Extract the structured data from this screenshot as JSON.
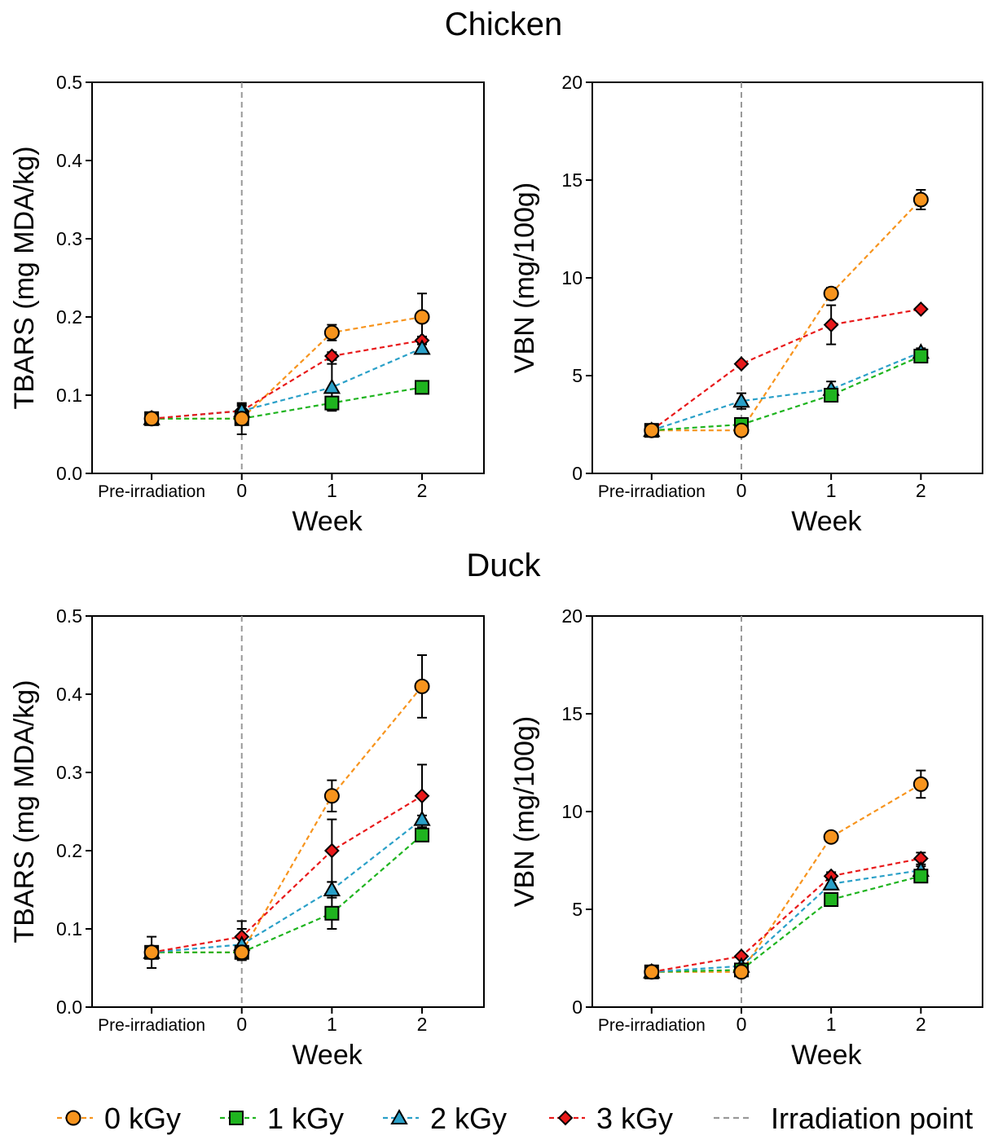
{
  "sections": {
    "top_title": "Chicken",
    "bottom_title": "Duck"
  },
  "legend": {
    "items": [
      {
        "label": "0 kGy",
        "marker": "circle",
        "color": "#f7941d"
      },
      {
        "label": "1 kGy",
        "marker": "square",
        "color": "#1fb41f"
      },
      {
        "label": "2 kGy",
        "marker": "triangle",
        "color": "#2aa0c8"
      },
      {
        "label": "3 kGy",
        "marker": "diamond",
        "color": "#e8191a"
      }
    ],
    "irradiation_label": "Irradiation point",
    "irradiation_color": "#999999"
  },
  "chart_data": [
    {
      "id": "chicken-tbars",
      "type": "line",
      "section": "Chicken",
      "title": "",
      "xlabel": "Week",
      "ylabel": "TBARS (mg MDA/kg)",
      "categories": [
        "Pre-irradiation",
        "0",
        "1",
        "2"
      ],
      "ylim": [
        0,
        0.5
      ],
      "yticks": [
        0,
        0.1,
        0.2,
        0.3,
        0.4,
        0.5
      ],
      "ytick_labels": [
        "0.0",
        "0.1",
        "0.2",
        "0.3",
        "0.4",
        "0.5"
      ],
      "irradiation_at": "0",
      "series": [
        {
          "name": "0 kGy",
          "values": [
            0.07,
            0.07,
            0.18,
            0.2
          ],
          "errors": [
            0.007,
            0.02,
            0.01,
            0.03
          ]
        },
        {
          "name": "1 kGy",
          "values": [
            0.07,
            0.07,
            0.09,
            0.11
          ],
          "errors": [
            0.005,
            0.005,
            0.005,
            0.006
          ]
        },
        {
          "name": "2 kGy",
          "values": [
            0.07,
            0.08,
            0.11,
            0.16
          ],
          "errors": [
            0.005,
            0.006,
            0.03,
            0.005
          ]
        },
        {
          "name": "3 kGy",
          "values": [
            0.07,
            0.08,
            0.15,
            0.17
          ],
          "errors": [
            0.005,
            0.008,
            0.005,
            0.005
          ]
        }
      ]
    },
    {
      "id": "chicken-vbn",
      "type": "line",
      "section": "Chicken",
      "title": "",
      "xlabel": "Week",
      "ylabel": "VBN (mg/100g)",
      "categories": [
        "Pre-irradiation",
        "0",
        "1",
        "2"
      ],
      "ylim": [
        0,
        20
      ],
      "yticks": [
        0,
        5,
        10,
        15,
        20
      ],
      "ytick_labels": [
        "0",
        "5",
        "10",
        "15",
        "20"
      ],
      "irradiation_at": "0",
      "series": [
        {
          "name": "0 kGy",
          "values": [
            2.2,
            2.2,
            9.2,
            14.0
          ],
          "errors": [
            0.1,
            0.1,
            0.3,
            0.5
          ]
        },
        {
          "name": "1 kGy",
          "values": [
            2.2,
            2.5,
            4.0,
            6.0
          ],
          "errors": [
            0.1,
            0.1,
            0.3,
            0.3
          ]
        },
        {
          "name": "2 kGy",
          "values": [
            2.2,
            3.7,
            4.3,
            6.2
          ],
          "errors": [
            0.1,
            0.4,
            0.4,
            0.2
          ]
        },
        {
          "name": "3 kGy",
          "values": [
            2.2,
            5.6,
            7.6,
            8.4
          ],
          "errors": [
            0.1,
            0.1,
            1.0,
            0.1
          ]
        }
      ]
    },
    {
      "id": "duck-tbars",
      "type": "line",
      "section": "Duck",
      "title": "",
      "xlabel": "Week",
      "ylabel": "TBARS (mg MDA/kg)",
      "categories": [
        "Pre-irradiation",
        "0",
        "1",
        "2"
      ],
      "ylim": [
        0,
        0.5
      ],
      "yticks": [
        0,
        0.1,
        0.2,
        0.3,
        0.4,
        0.5
      ],
      "ytick_labels": [
        "0.0",
        "0.1",
        "0.2",
        "0.3",
        "0.4",
        "0.5"
      ],
      "irradiation_at": "0",
      "series": [
        {
          "name": "0 kGy",
          "values": [
            0.07,
            0.07,
            0.27,
            0.41
          ],
          "errors": [
            0.02,
            0.007,
            0.02,
            0.04
          ]
        },
        {
          "name": "1 kGy",
          "values": [
            0.07,
            0.07,
            0.12,
            0.22
          ],
          "errors": [
            0.005,
            0.005,
            0.02,
            0.005
          ]
        },
        {
          "name": "2 kGy",
          "values": [
            0.07,
            0.08,
            0.15,
            0.24
          ],
          "errors": [
            0.005,
            0.02,
            0.01,
            0.005
          ]
        },
        {
          "name": "3 kGy",
          "values": [
            0.07,
            0.09,
            0.2,
            0.27
          ],
          "errors": [
            0.005,
            0.02,
            0.04,
            0.04
          ]
        }
      ]
    },
    {
      "id": "duck-vbn",
      "type": "line",
      "section": "Duck",
      "title": "",
      "xlabel": "Week",
      "ylabel": "VBN (mg/100g)",
      "categories": [
        "Pre-irradiation",
        "0",
        "1",
        "2"
      ],
      "ylim": [
        0,
        20
      ],
      "yticks": [
        0,
        5,
        10,
        15,
        20
      ],
      "ytick_labels": [
        "0",
        "5",
        "10",
        "15",
        "20"
      ],
      "irradiation_at": "0",
      "series": [
        {
          "name": "0 kGy",
          "values": [
            1.8,
            1.8,
            8.7,
            11.4
          ],
          "errors": [
            0.1,
            0.1,
            0.2,
            0.7
          ]
        },
        {
          "name": "1 kGy",
          "values": [
            1.8,
            1.9,
            5.5,
            6.7
          ],
          "errors": [
            0.1,
            0.1,
            0.2,
            0.2
          ]
        },
        {
          "name": "2 kGy",
          "values": [
            1.8,
            2.1,
            6.3,
            7.0
          ],
          "errors": [
            0.1,
            0.1,
            0.2,
            0.2
          ]
        },
        {
          "name": "3 kGy",
          "values": [
            1.8,
            2.6,
            6.7,
            7.6
          ],
          "errors": [
            0.1,
            0.1,
            0.2,
            0.3
          ]
        }
      ]
    }
  ]
}
